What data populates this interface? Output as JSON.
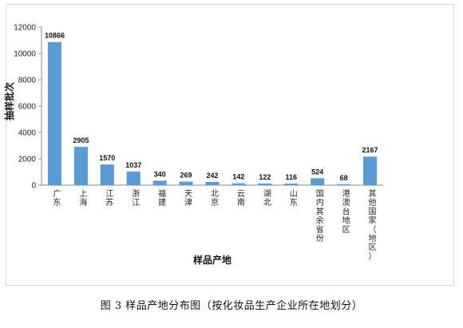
{
  "caption": "图 3  样品产地分布图（按化妆品生产企业所在地划分）",
  "chart_data": {
    "type": "bar",
    "categories": [
      "广东",
      "上海",
      "江苏",
      "浙江",
      "福建",
      "天津",
      "北京",
      "云南",
      "湖北",
      "山东",
      "国内其余省份",
      "港澳台地区",
      "其他国家（地区）"
    ],
    "values": [
      10866,
      2905,
      1570,
      1037,
      340,
      269,
      242,
      142,
      122,
      116,
      524,
      68,
      2167
    ],
    "xlabel": "样品产地",
    "ylabel": "抽样批次",
    "ylim": [
      0,
      12000
    ],
    "yticks": [
      0,
      2000,
      4000,
      6000,
      8000,
      10000,
      12000
    ],
    "grid": false,
    "legend": "none",
    "bar_color": "#5b9bd5"
  }
}
